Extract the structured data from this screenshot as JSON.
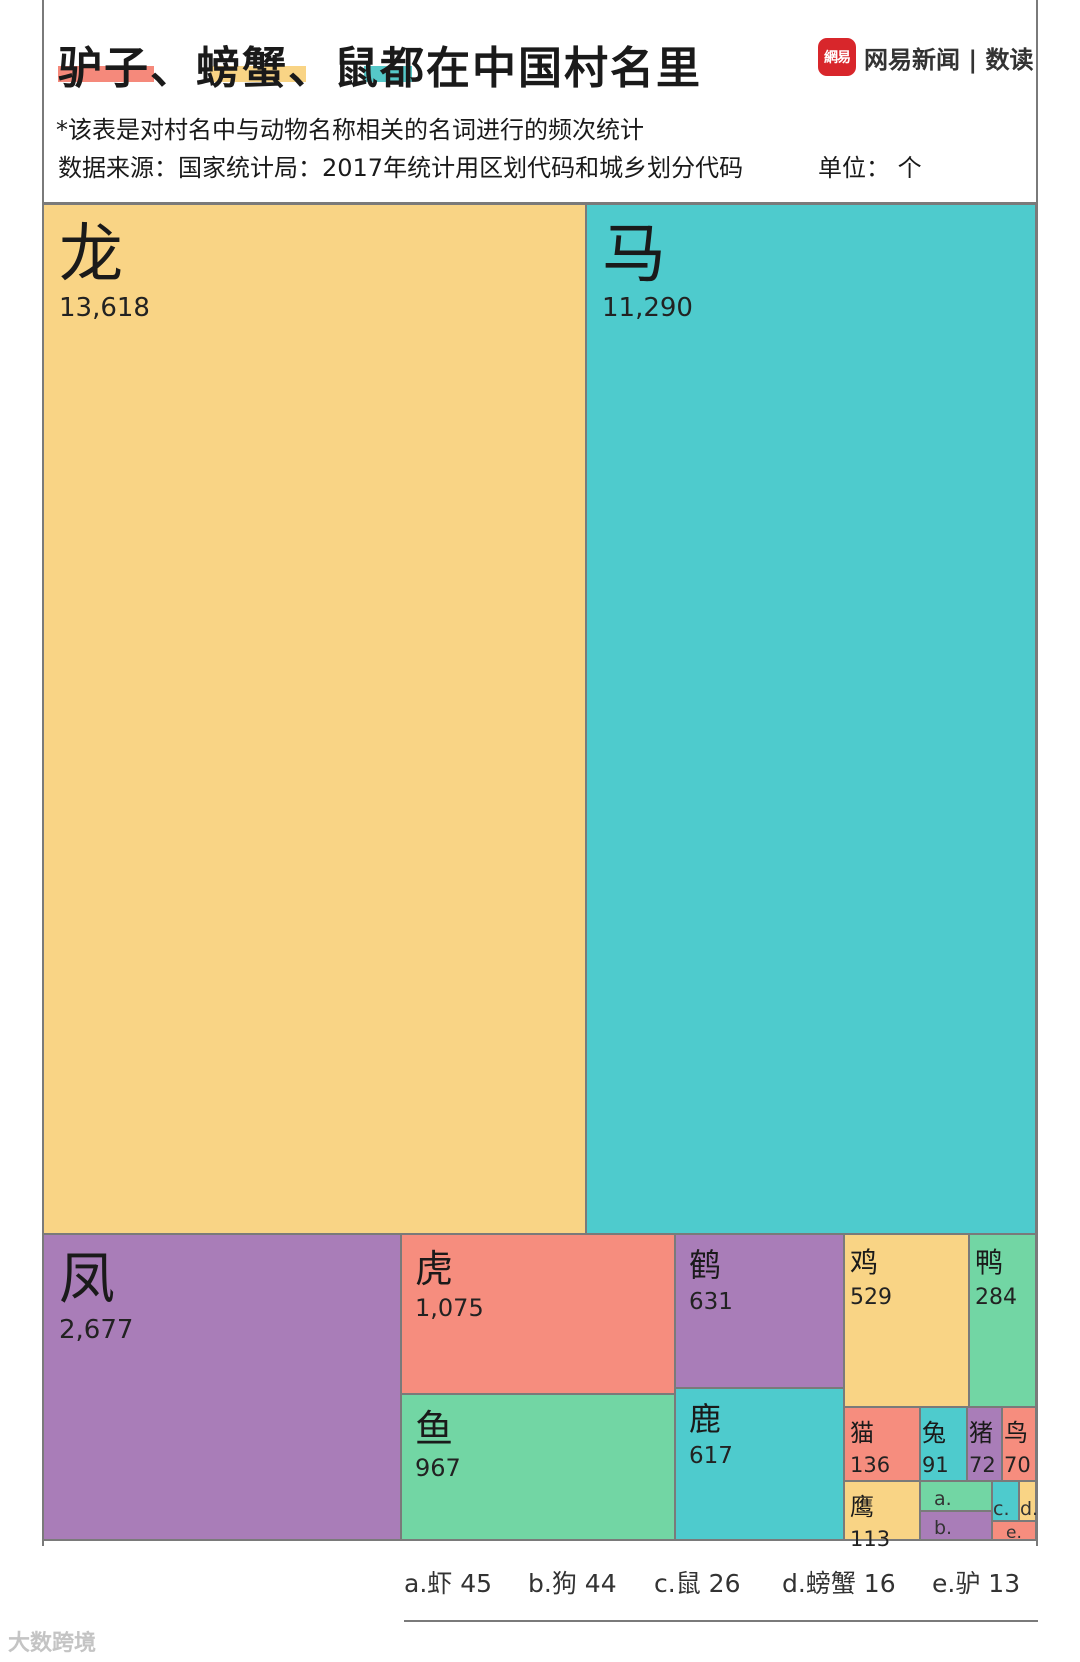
{
  "header": {
    "title_part1": "驴子",
    "title_sep1": "、",
    "title_part2": "螃蟹",
    "title_sep2": "、",
    "title_part3": "鼠",
    "title_rest": "都在中国村名里",
    "subtitle": "*该表是对村名中与动物名称相关的名词进行的频次统计",
    "source": "数据来源：国家统计局：2017年统计用区划代码和城乡划分代码",
    "unit": "单位： 个",
    "logo_text": "網易",
    "brand": "网易新闻 | 数读",
    "highlight_colors": [
      "#f5897b",
      "#f9d485",
      "#55c8c8"
    ]
  },
  "legend": [
    {
      "key": "a.",
      "label": "虾",
      "value": "45"
    },
    {
      "key": "b.",
      "label": "狗",
      "value": "44"
    },
    {
      "key": "c.",
      "label": "鼠",
      "value": "26"
    },
    {
      "key": "d.",
      "label": "螃蟹",
      "value": "16"
    },
    {
      "key": "e.",
      "label": "驴",
      "value": "13"
    }
  ],
  "watermark": "大数跨境",
  "chart_data": {
    "type": "treemap",
    "title": "驴子、螃蟹、鼠都在中国村名里",
    "unit": "个",
    "items": [
      {
        "name": "龙",
        "value": 13618,
        "display": "13,618",
        "color": "#f9d485"
      },
      {
        "name": "马",
        "value": 11290,
        "display": "11,290",
        "color": "#4ecbcd"
      },
      {
        "name": "凤",
        "value": 2677,
        "display": "2,677",
        "color": "#a97db8"
      },
      {
        "name": "虎",
        "value": 1075,
        "display": "1,075",
        "color": "#f68d7e"
      },
      {
        "name": "鱼",
        "value": 967,
        "display": "967",
        "color": "#72d6a4"
      },
      {
        "name": "鹤",
        "value": 631,
        "display": "631",
        "color": "#a97db8"
      },
      {
        "name": "鹿",
        "value": 617,
        "display": "617",
        "color": "#4ecbcd"
      },
      {
        "name": "鸡",
        "value": 529,
        "display": "529",
        "color": "#f9d485"
      },
      {
        "name": "鸭",
        "value": 284,
        "display": "284",
        "color": "#72d6a4"
      },
      {
        "name": "猫",
        "value": 136,
        "display": "136",
        "color": "#f68d7e"
      },
      {
        "name": "鹰",
        "value": 113,
        "display": "113",
        "color": "#f9d485"
      },
      {
        "name": "兔",
        "value": 91,
        "display": "91",
        "color": "#4ecbcd"
      },
      {
        "name": "猪",
        "value": 72,
        "display": "72",
        "color": "#a97db8"
      },
      {
        "name": "鸟",
        "value": 70,
        "display": "70",
        "color": "#f68d7e"
      },
      {
        "name": "虾",
        "value": 45,
        "label": "a.",
        "color": "#72d6a4"
      },
      {
        "name": "狗",
        "value": 44,
        "label": "b.",
        "color": "#a97db8"
      },
      {
        "name": "鼠",
        "value": 26,
        "label": "c.",
        "color": "#4ecbcd"
      },
      {
        "name": "螃蟹",
        "value": 16,
        "label": "d.",
        "color": "#f9d485"
      },
      {
        "name": "驴",
        "value": 13,
        "label": "e.",
        "color": "#f68d7e"
      }
    ]
  }
}
